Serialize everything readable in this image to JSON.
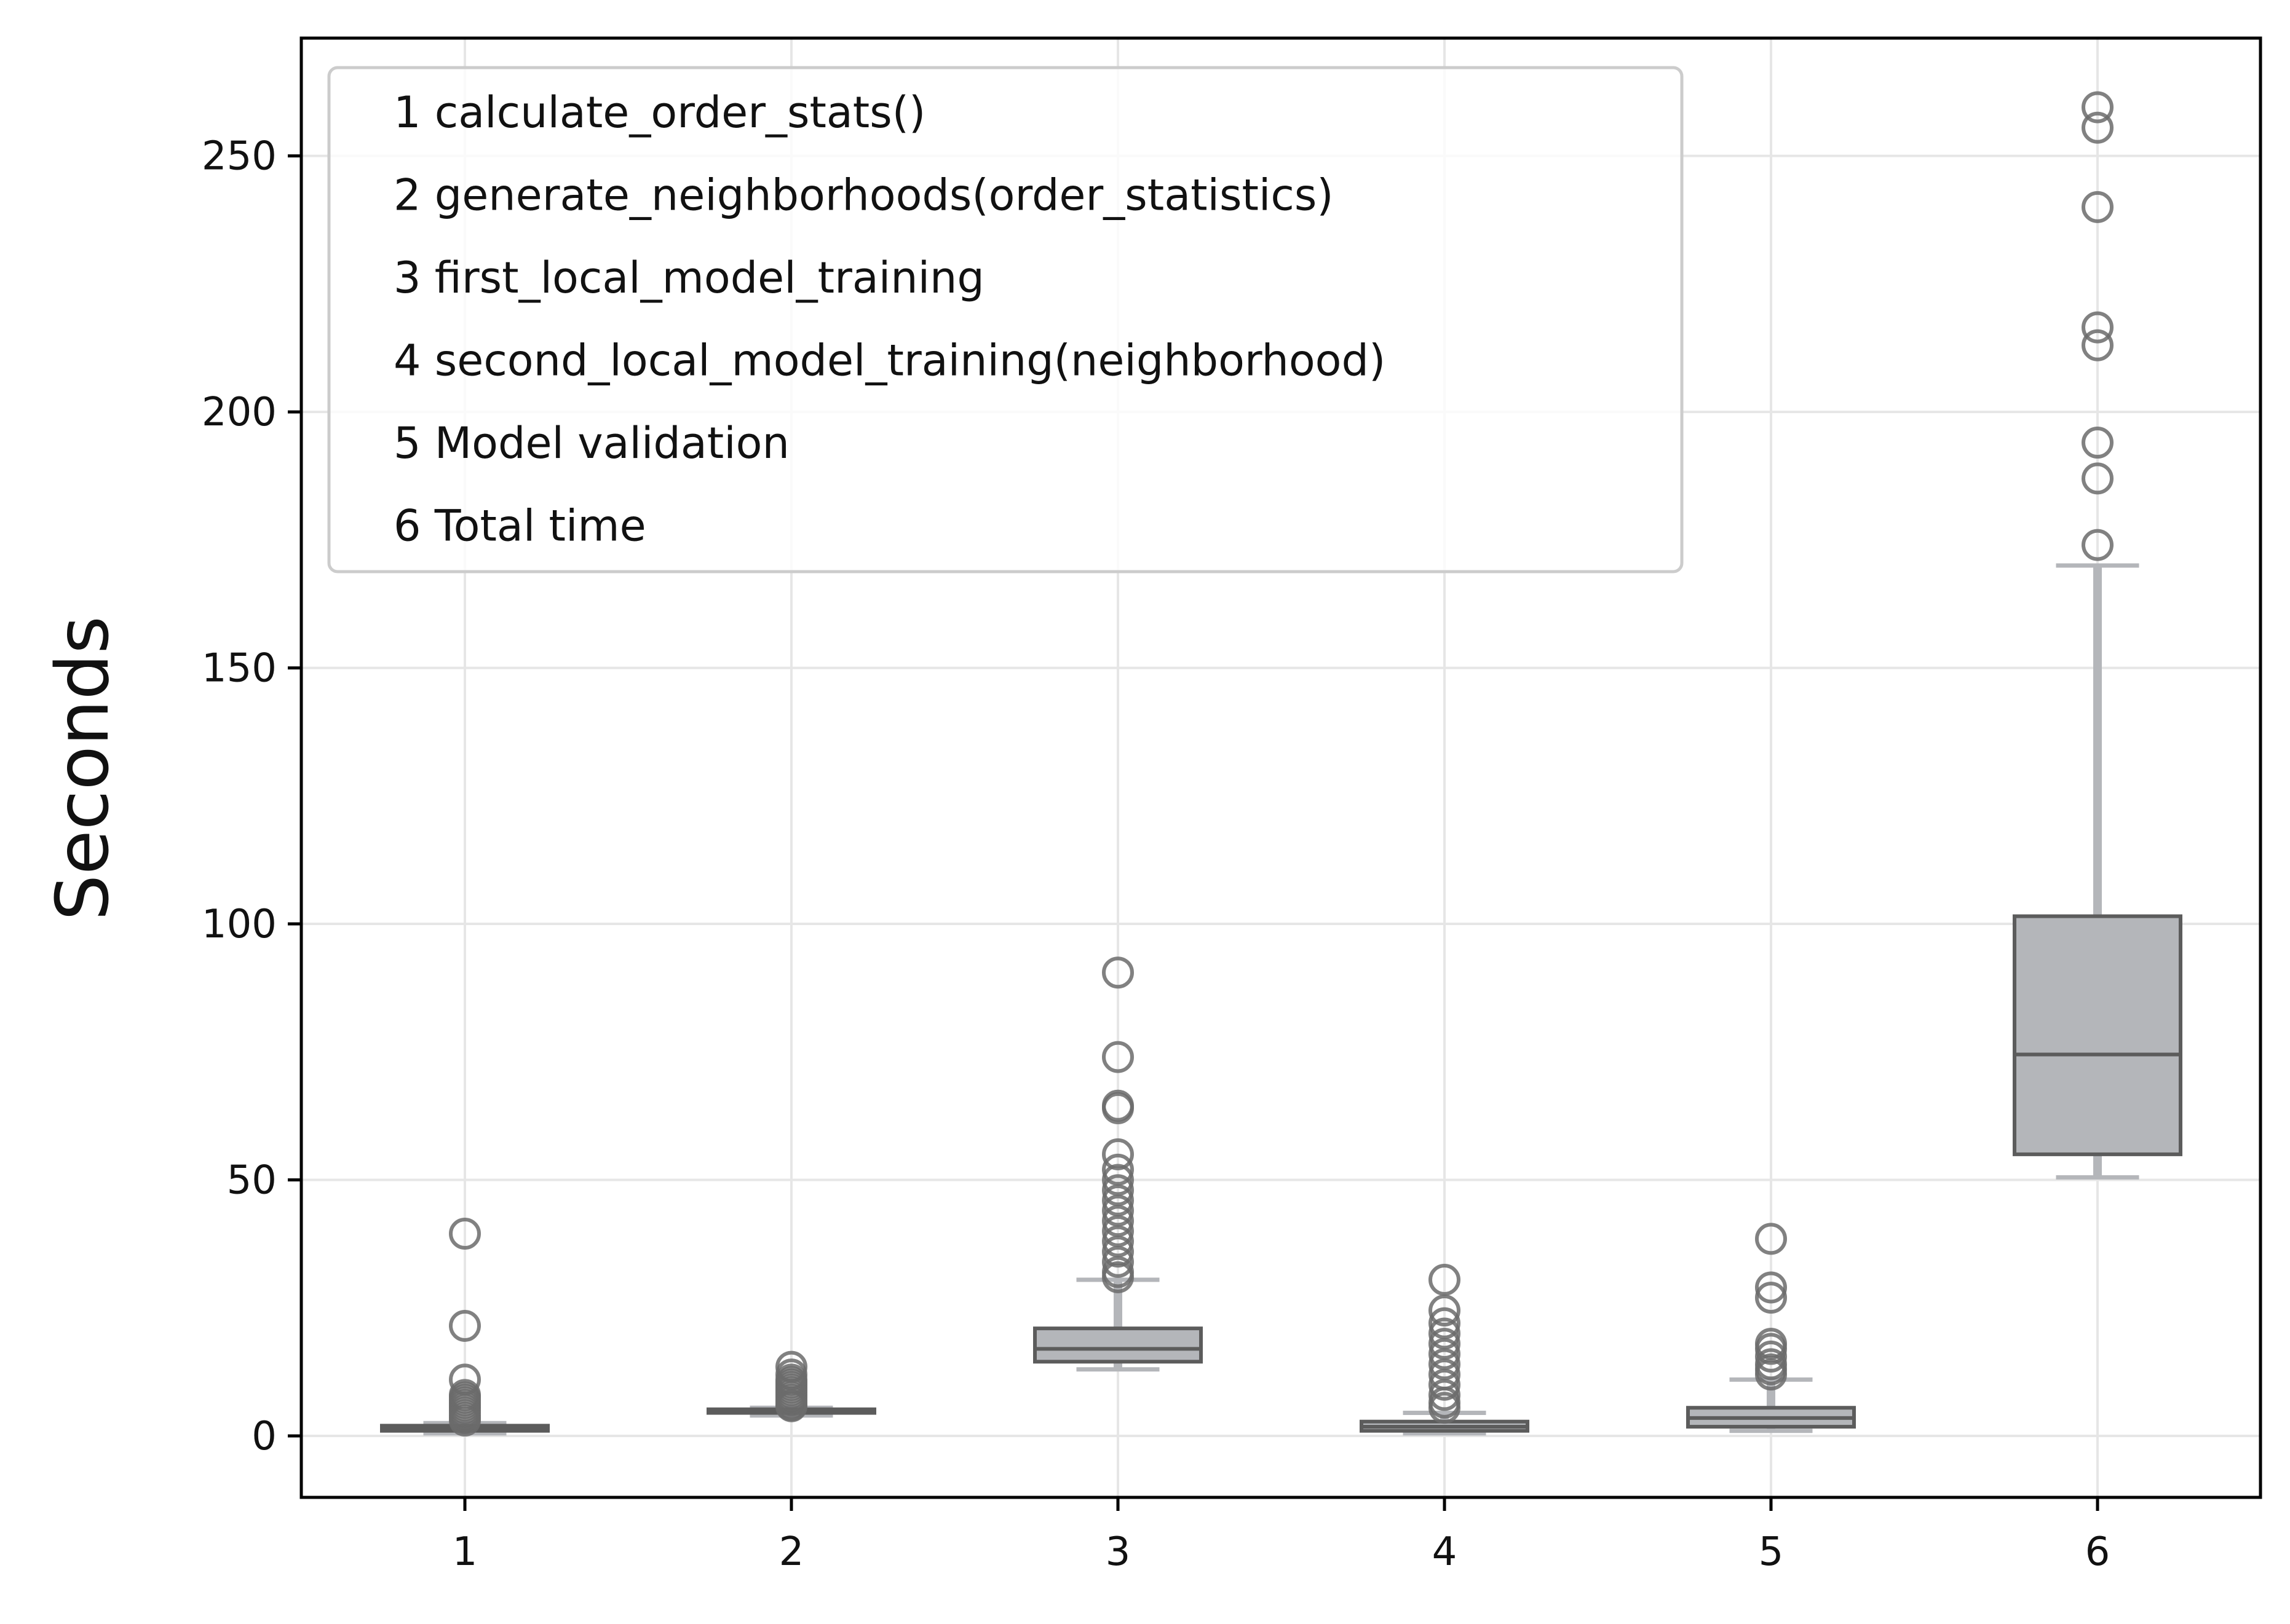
{
  "chart_data": {
    "type": "boxplot",
    "title": "",
    "xlabel": "",
    "ylabel": "Seconds",
    "ylim": [
      -12,
      273
    ],
    "yticks": [
      0,
      50,
      100,
      150,
      200,
      250
    ],
    "xticks": [
      "1",
      "2",
      "3",
      "4",
      "5",
      "6"
    ],
    "grid": true,
    "legend_position": "upper-left",
    "legend": [
      "1 calculate_order_stats()",
      "2 generate_neighborhoods(order_statistics)",
      "3 first_local_model_training",
      "4 second_local_model_training(neighborhood)",
      "5 Model validation",
      "6 Total time"
    ],
    "colors": {
      "box_fill": "#b4b6ba",
      "box_edge": "#5c5c5c",
      "whisker": "#b4b6ba",
      "flier": "#6b6b6b",
      "grid": "#e6e6e6",
      "axes": "#000000"
    },
    "boxes": [
      {
        "category": "1",
        "whisker_low": 0.5,
        "q1": 1.0,
        "median": 1.5,
        "q3": 2.0,
        "whisker_high": 2.5,
        "outliers": [
          39.5,
          21.5,
          11.0,
          8.0,
          7.5,
          7.0,
          6.5,
          6.0,
          5.5,
          5.0,
          4.5,
          4.0,
          3.5,
          3.0
        ]
      },
      {
        "category": "2",
        "whisker_low": 4.0,
        "q1": 4.5,
        "median": 4.8,
        "q3": 5.2,
        "whisker_high": 5.5,
        "outliers": [
          13.5,
          12.0,
          11.0,
          10.5,
          10.0,
          9.5,
          9.0,
          8.5,
          8.0,
          7.5,
          7.0,
          6.5,
          6.0,
          5.8
        ]
      },
      {
        "category": "3",
        "whisker_low": 13.0,
        "q1": 14.5,
        "median": 17.0,
        "q3": 21.0,
        "whisker_high": 30.5,
        "outliers": [
          90.5,
          74.0,
          64.5,
          64.0,
          55.0,
          52.0,
          50.0,
          48.0,
          46.0,
          44.0,
          42.0,
          40.0,
          38.0,
          36.0,
          34.0,
          32.0,
          31.0
        ]
      },
      {
        "category": "4",
        "whisker_low": 0.5,
        "q1": 1.0,
        "median": 1.8,
        "q3": 2.8,
        "whisker_high": 4.5,
        "outliers": [
          30.5,
          24.5,
          22.0,
          20.0,
          18.0,
          16.0,
          14.0,
          12.0,
          10.0,
          8.0,
          6.5,
          5.5
        ]
      },
      {
        "category": "5",
        "whisker_low": 1.0,
        "q1": 1.8,
        "median": 3.5,
        "q3": 5.5,
        "whisker_high": 11.0,
        "outliers": [
          38.5,
          29.0,
          27.0,
          18.0,
          17.0,
          15.5,
          14.0,
          13.0,
          12.0
        ]
      },
      {
        "category": "6",
        "whisker_low": 50.5,
        "q1": 55.0,
        "median": 74.5,
        "q3": 101.5,
        "whisker_high": 170.0,
        "outliers": [
          259.5,
          255.5,
          240.0,
          216.5,
          213.0,
          194.0,
          187.0,
          174.0
        ]
      }
    ]
  }
}
